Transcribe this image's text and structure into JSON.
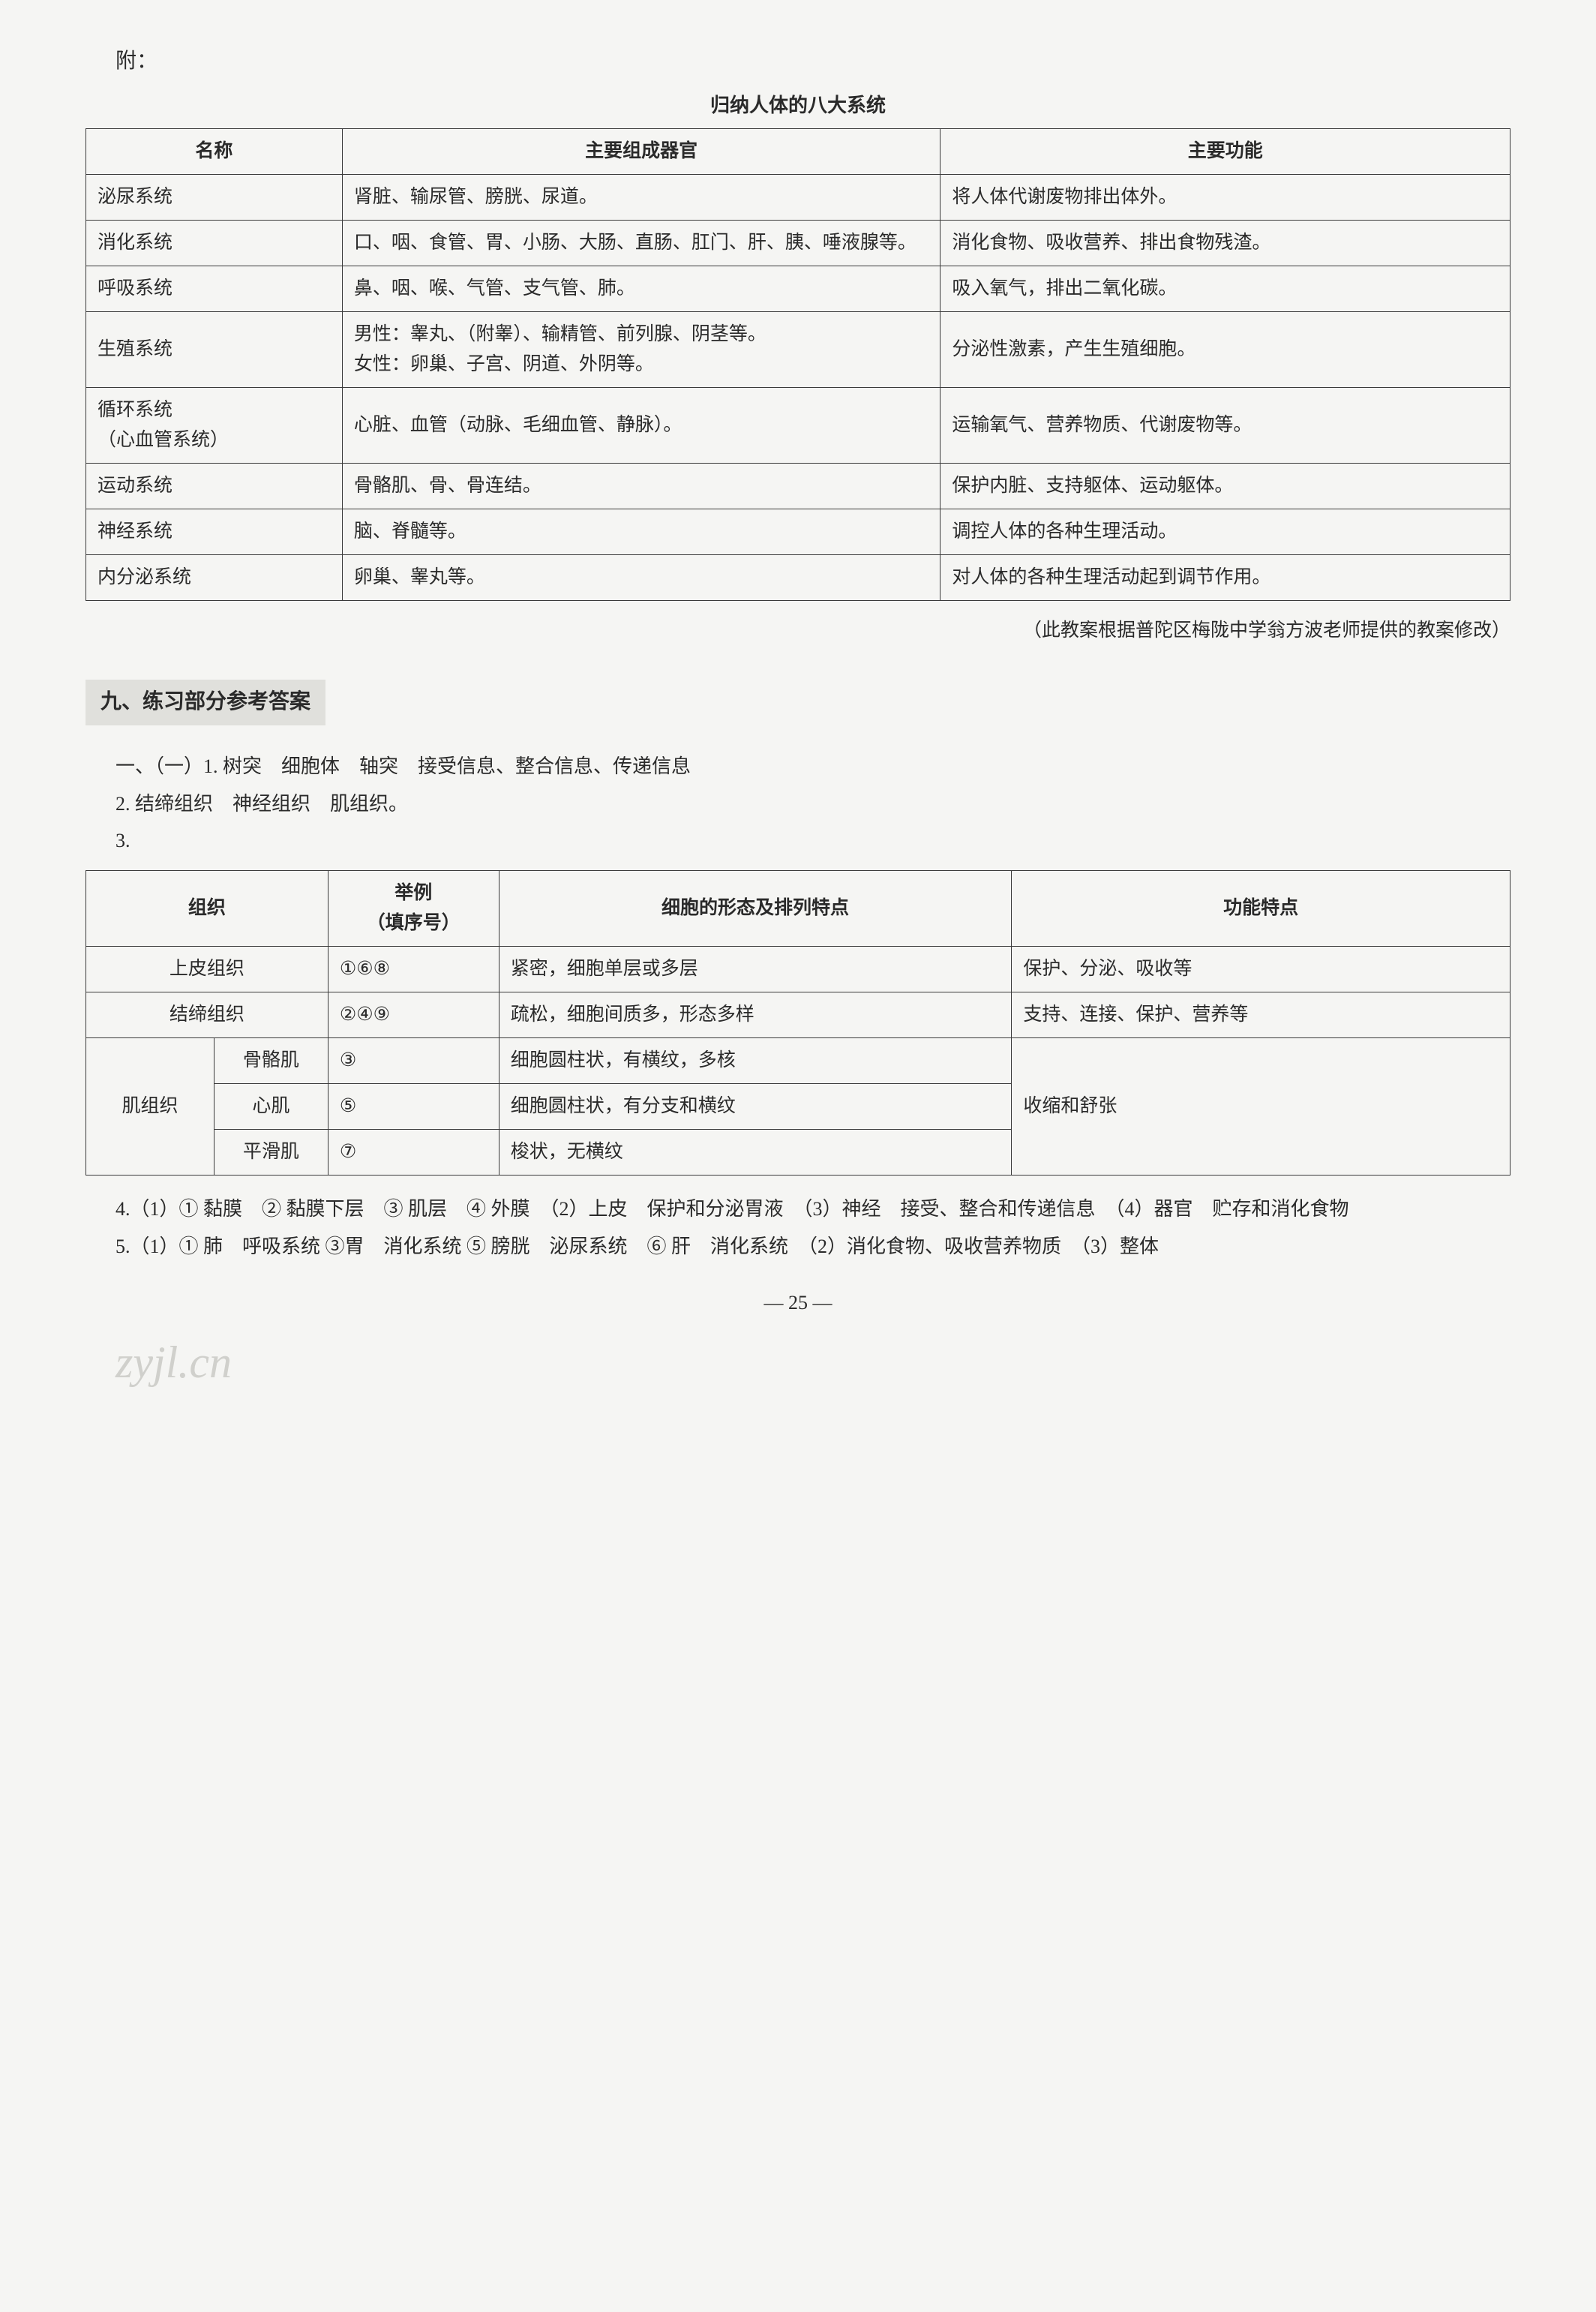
{
  "attach_label": "附：",
  "table1_title": "归纳人体的八大系统",
  "table1": {
    "headers": [
      "名称",
      "主要组成器官",
      "主要功能"
    ],
    "rows": [
      [
        "泌尿系统",
        "肾脏、输尿管、膀胱、尿道。",
        "将人体代谢废物排出体外。"
      ],
      [
        "消化系统",
        "口、咽、食管、胃、小肠、大肠、直肠、肛门、肝、胰、唾液腺等。",
        "消化食物、吸收营养、排出食物残渣。"
      ],
      [
        "呼吸系统",
        "鼻、咽、喉、气管、支气管、肺。",
        "吸入氧气，排出二氧化碳。"
      ],
      [
        "生殖系统",
        "男性：睾丸、（附睾）、输精管、前列腺、阴茎等。\n女性：卵巢、子宫、阴道、外阴等。",
        "分泌性激素，产生生殖细胞。"
      ],
      [
        "循环系统\n（心血管系统）",
        "心脏、血管（动脉、毛细血管、静脉）。",
        "运输氧气、营养物质、代谢废物等。"
      ],
      [
        "运动系统",
        "骨骼肌、骨、骨连结。",
        "保护内脏、支持躯体、运动躯体。"
      ],
      [
        "神经系统",
        "脑、脊髓等。",
        "调控人体的各种生理活动。"
      ],
      [
        "内分泌系统",
        "卵巢、睾丸等。",
        "对人体的各种生理活动起到调节作用。"
      ]
    ],
    "col_widths": [
      "18%",
      "42%",
      "40%"
    ],
    "border_color": "#3a3a3a"
  },
  "table1_note": "（此教案根据普陀区梅陇中学翁方波老师提供的教案修改）",
  "section_header": "九、练习部分参考答案",
  "section_header_bg": "#e0e0dc",
  "answers": {
    "line1": "一、（一）1. 树突　细胞体　轴突　接受信息、整合信息、传递信息",
    "line2": "2. 结缔组织　神经组织　肌组织。",
    "line3": "3.",
    "line4": "4.（1）① 黏膜　② 黏膜下层　③ 肌层　④ 外膜　（2）上皮　保护和分泌胃液　（3）神经　接受、整合和传递信息　（4）器官　贮存和消化食物",
    "line5": "5.（1）① 肺　呼吸系统 ③胃　消化系统 ⑤ 膀胱　泌尿系统　⑥ 肝　消化系统　（2）消化食物、吸收营养物质　（3）整体"
  },
  "table2": {
    "headers": [
      "组织",
      "举例\n（填序号）",
      "细胞的形态及排列特点",
      "功能特点"
    ],
    "rows": [
      {
        "tissue_span": "上皮组织",
        "sub": "",
        "example": "①⑥⑧",
        "morph": "紧密，细胞单层或多层",
        "func": "保护、分泌、吸收等"
      },
      {
        "tissue_span": "结缔组织",
        "sub": "",
        "example": "②④⑨",
        "morph": "疏松，细胞间质多，形态多样",
        "func": "支持、连接、保护、营养等"
      },
      {
        "tissue_span": "肌组织",
        "sub": "骨骼肌",
        "example": "③",
        "morph": "细胞圆柱状，有横纹，多核",
        "func": "收缩和舒张"
      },
      {
        "tissue_span": "",
        "sub": "心肌",
        "example": "⑤",
        "morph": "细胞圆柱状，有分支和横纹",
        "func": ""
      },
      {
        "tissue_span": "",
        "sub": "平滑肌",
        "example": "⑦",
        "morph": "梭状，无横纹",
        "func": ""
      }
    ],
    "col_widths": [
      "9%",
      "8%",
      "12%",
      "36%",
      "35%"
    ],
    "border_color": "#3a3a3a"
  },
  "page_number": "— 25 —",
  "watermark_text": "zyjl.cn",
  "background_color": "#f5f5f3",
  "text_color": "#2a2a2a",
  "font_family": "SimSun",
  "base_fontsize": 25
}
